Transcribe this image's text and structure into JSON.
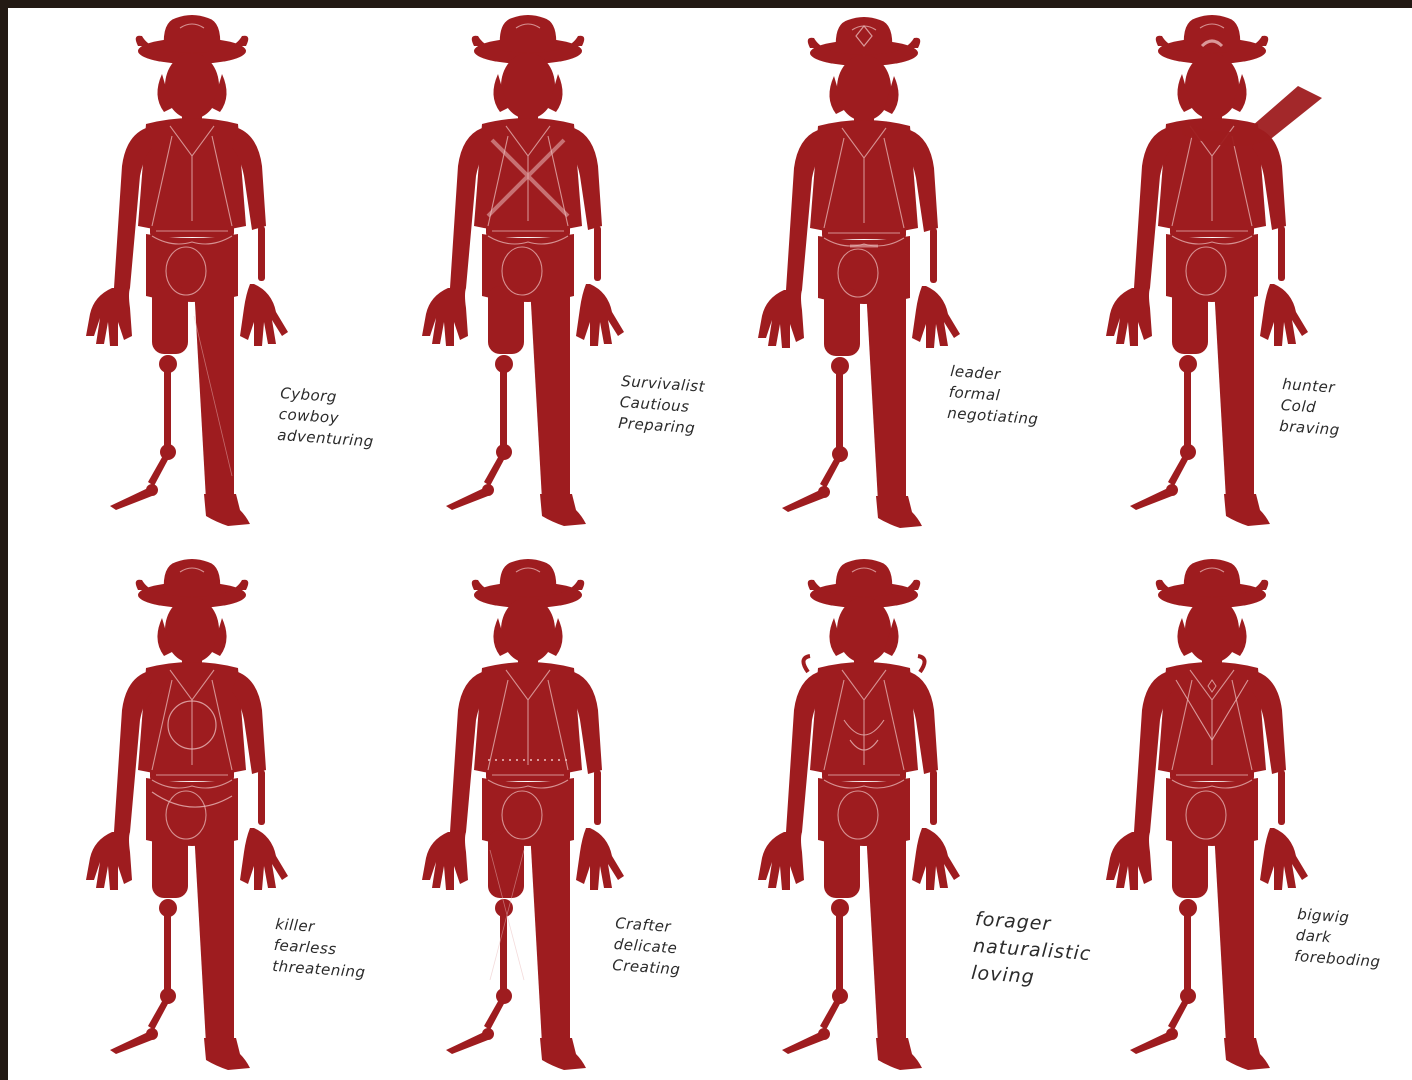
{
  "colors": {
    "figure_fill": "#9e1c1f",
    "detail_stroke": "#e9b8b8",
    "frame": "#231a14",
    "paper": "#ffffff",
    "ink": "#2b2b2b"
  },
  "figures": [
    {
      "lines": [
        "Cyborg",
        "cowboy",
        "adventuring"
      ]
    },
    {
      "lines": [
        "Survivalist",
        "Cautious",
        "Preparing"
      ]
    },
    {
      "lines": [
        "leader",
        "formal",
        "negotiating"
      ]
    },
    {
      "lines": [
        "hunter",
        "Cold",
        "braving"
      ]
    },
    {
      "lines": [
        "killer",
        "fearless",
        "threatening"
      ]
    },
    {
      "lines": [
        "Crafter",
        "delicate",
        "Creating"
      ]
    },
    {
      "lines": [
        "forager",
        "naturalistic",
        "loving"
      ]
    },
    {
      "lines": [
        "bigwig",
        "dark",
        "foreboding"
      ]
    }
  ]
}
